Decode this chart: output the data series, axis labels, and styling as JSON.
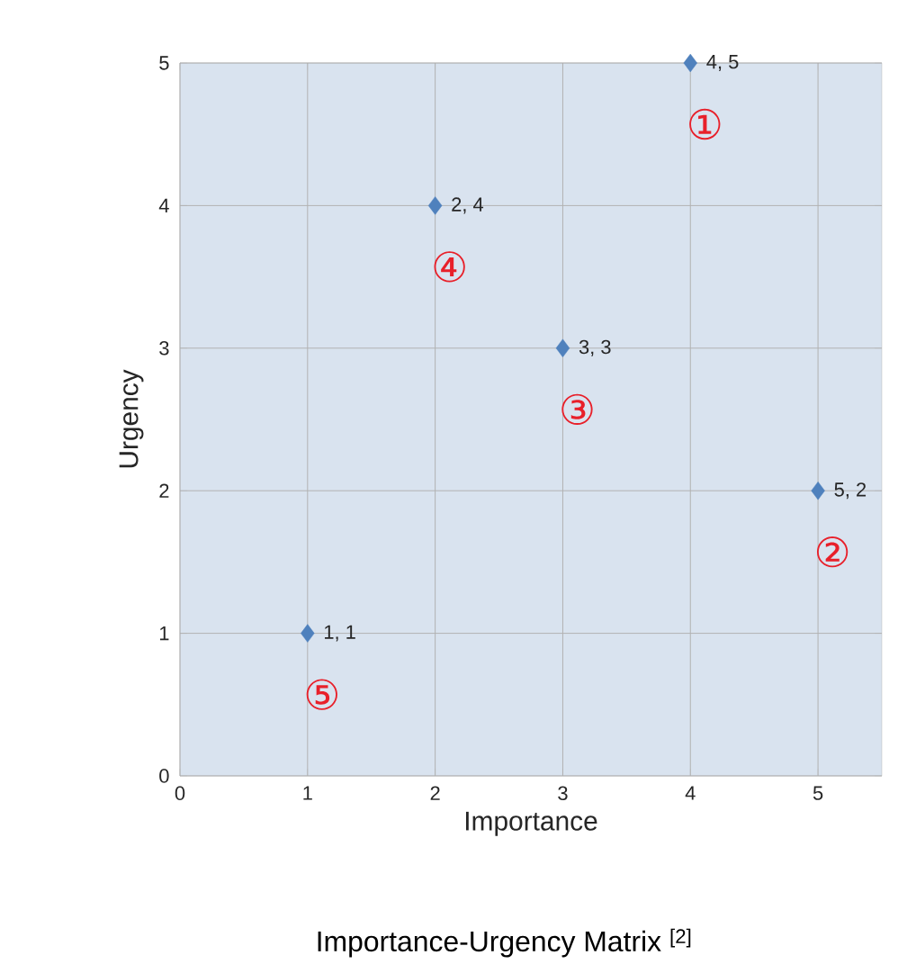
{
  "chart_data": {
    "type": "scatter",
    "xlabel": "Importance",
    "ylabel": "Urgency",
    "x": [
      1,
      2,
      3,
      4,
      5
    ],
    "values": [
      1,
      4,
      3,
      5,
      2
    ],
    "value_labels": [
      "1, 1",
      "2, 4",
      "3, 3",
      "4, 5",
      "5, 2"
    ],
    "color": "#4f81bd",
    "marker": "diamond",
    "grid": true,
    "xlim": [
      0,
      5.5
    ],
    "ylim": [
      0,
      5
    ],
    "xticks": [
      0,
      1,
      2,
      3,
      4,
      5
    ],
    "yticks": [
      0,
      1,
      2,
      3,
      4,
      5
    ],
    "annotations": [
      "⑤",
      "④",
      "③",
      "①",
      "②",
      "Importance-Urgency Matrix $^{[2]}$"
    ]
  }
}
